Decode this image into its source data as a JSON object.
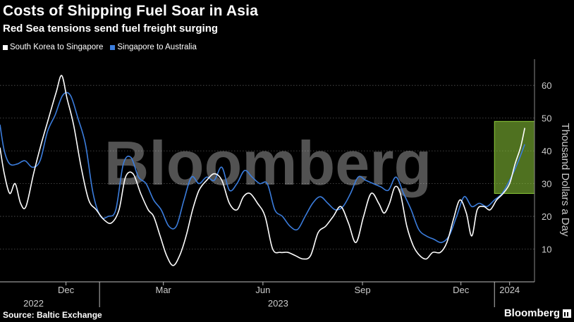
{
  "title": "Costs of Shipping Fuel Soar in Asia",
  "subtitle": "Red Sea tensions send fuel freight surging",
  "source": "Source: Baltic Exchange",
  "brand": "Bloomberg",
  "watermark": "Bloomberg",
  "chart_data": {
    "type": "line",
    "ylabel": "Thousand Dollars a Day",
    "ylim": [
      0,
      68
    ],
    "yticks": [
      10,
      20,
      30,
      40,
      50,
      60
    ],
    "xlim": [
      "2022-10-01",
      "2024-02-07"
    ],
    "x_tick_labels": [
      {
        "label": "Dec",
        "date": "2022-12-01"
      },
      {
        "label": "Mar",
        "date": "2023-03-01"
      },
      {
        "label": "Jun",
        "date": "2023-06-01"
      },
      {
        "label": "Sep",
        "date": "2023-09-01"
      },
      {
        "label": "Dec",
        "date": "2023-12-01"
      },
      {
        "label": "2024",
        "date": "2024-01-15"
      }
    ],
    "year_labels": [
      {
        "label": "2022",
        "date": "2022-11-01"
      },
      {
        "label": "2023",
        "date": "2023-06-15"
      }
    ],
    "year_dividers": [
      "2023-01-01",
      "2024-01-01"
    ],
    "highlight": {
      "from": "2024-01-01",
      "to": "2024-02-07",
      "ylow": 27,
      "yhigh": 49,
      "color": "#8fce3a"
    },
    "grid": "horizontal",
    "legend_position": "top-left",
    "series": [
      {
        "name": "South Korea to Singapore",
        "color": "#ffffff",
        "points": [
          [
            "2022-10-01",
            41
          ],
          [
            "2022-10-05",
            33
          ],
          [
            "2022-10-10",
            27
          ],
          [
            "2022-10-15",
            30
          ],
          [
            "2022-10-20",
            24
          ],
          [
            "2022-10-25",
            23
          ],
          [
            "2022-11-01",
            33
          ],
          [
            "2022-11-08",
            42
          ],
          [
            "2022-11-15",
            50
          ],
          [
            "2022-11-22",
            58
          ],
          [
            "2022-11-27",
            63
          ],
          [
            "2022-12-02",
            56
          ],
          [
            "2022-12-08",
            48
          ],
          [
            "2022-12-15",
            35
          ],
          [
            "2022-12-22",
            25
          ],
          [
            "2022-12-29",
            22
          ],
          [
            "2023-01-05",
            19
          ],
          [
            "2023-01-12",
            18
          ],
          [
            "2023-01-19",
            22
          ],
          [
            "2023-01-25",
            32
          ],
          [
            "2023-02-01",
            33
          ],
          [
            "2023-02-08",
            27
          ],
          [
            "2023-02-15",
            22
          ],
          [
            "2023-02-20",
            20
          ],
          [
            "2023-02-26",
            14
          ],
          [
            "2023-03-04",
            8
          ],
          [
            "2023-03-10",
            5
          ],
          [
            "2023-03-16",
            8
          ],
          [
            "2023-03-22",
            14
          ],
          [
            "2023-03-28",
            22
          ],
          [
            "2023-04-03",
            28
          ],
          [
            "2023-04-10",
            31
          ],
          [
            "2023-04-17",
            33
          ],
          [
            "2023-04-24",
            31
          ],
          [
            "2023-05-01",
            24
          ],
          [
            "2023-05-08",
            22
          ],
          [
            "2023-05-14",
            26
          ],
          [
            "2023-05-20",
            27
          ],
          [
            "2023-05-27",
            24
          ],
          [
            "2023-06-03",
            20
          ],
          [
            "2023-06-10",
            10
          ],
          [
            "2023-06-17",
            9
          ],
          [
            "2023-06-24",
            9
          ],
          [
            "2023-07-01",
            8
          ],
          [
            "2023-07-08",
            7
          ],
          [
            "2023-07-15",
            8
          ],
          [
            "2023-07-22",
            15
          ],
          [
            "2023-07-29",
            17
          ],
          [
            "2023-08-05",
            20
          ],
          [
            "2023-08-12",
            23
          ],
          [
            "2023-08-19",
            18
          ],
          [
            "2023-08-26",
            12
          ],
          [
            "2023-09-02",
            20
          ],
          [
            "2023-09-09",
            27
          ],
          [
            "2023-09-16",
            24
          ],
          [
            "2023-09-21",
            21
          ],
          [
            "2023-09-26",
            24
          ],
          [
            "2023-10-01",
            29
          ],
          [
            "2023-10-06",
            27
          ],
          [
            "2023-10-12",
            17
          ],
          [
            "2023-10-18",
            11
          ],
          [
            "2023-10-24",
            8
          ],
          [
            "2023-10-30",
            7
          ],
          [
            "2023-11-05",
            9
          ],
          [
            "2023-11-12",
            9
          ],
          [
            "2023-11-18",
            12
          ],
          [
            "2023-11-24",
            19
          ],
          [
            "2023-11-30",
            25
          ],
          [
            "2023-12-06",
            21
          ],
          [
            "2023-12-11",
            14
          ],
          [
            "2023-12-16",
            22
          ],
          [
            "2023-12-22",
            23
          ],
          [
            "2023-12-28",
            22
          ],
          [
            "2024-01-03",
            25
          ],
          [
            "2024-01-09",
            27
          ],
          [
            "2024-01-15",
            30
          ],
          [
            "2024-01-20",
            36
          ],
          [
            "2024-01-25",
            41
          ],
          [
            "2024-01-29",
            47
          ]
        ]
      },
      {
        "name": "Singapore to Australia",
        "color": "#3b7ddd",
        "points": [
          [
            "2022-10-01",
            48
          ],
          [
            "2022-10-05",
            40
          ],
          [
            "2022-10-10",
            36
          ],
          [
            "2022-10-17",
            36
          ],
          [
            "2022-10-24",
            37
          ],
          [
            "2022-10-31",
            35
          ],
          [
            "2022-11-07",
            37
          ],
          [
            "2022-11-14",
            46
          ],
          [
            "2022-11-21",
            51
          ],
          [
            "2022-11-28",
            57
          ],
          [
            "2022-12-05",
            57
          ],
          [
            "2022-12-12",
            50
          ],
          [
            "2022-12-19",
            42
          ],
          [
            "2022-12-26",
            27
          ],
          [
            "2023-01-02",
            20
          ],
          [
            "2023-01-09",
            20
          ],
          [
            "2023-01-16",
            22
          ],
          [
            "2023-01-23",
            36
          ],
          [
            "2023-01-30",
            38
          ],
          [
            "2023-02-06",
            32
          ],
          [
            "2023-02-13",
            30
          ],
          [
            "2023-02-20",
            25
          ],
          [
            "2023-02-27",
            22
          ],
          [
            "2023-03-06",
            17
          ],
          [
            "2023-03-13",
            17
          ],
          [
            "2023-03-20",
            25
          ],
          [
            "2023-03-27",
            32
          ],
          [
            "2023-04-03",
            30
          ],
          [
            "2023-04-10",
            32
          ],
          [
            "2023-04-17",
            31
          ],
          [
            "2023-04-24",
            35
          ],
          [
            "2023-05-01",
            28
          ],
          [
            "2023-05-08",
            30
          ],
          [
            "2023-05-15",
            34
          ],
          [
            "2023-05-22",
            32
          ],
          [
            "2023-05-29",
            30
          ],
          [
            "2023-06-05",
            30
          ],
          [
            "2023-06-12",
            22
          ],
          [
            "2023-06-19",
            20
          ],
          [
            "2023-06-26",
            17
          ],
          [
            "2023-07-03",
            16
          ],
          [
            "2023-07-10",
            20
          ],
          [
            "2023-07-17",
            24
          ],
          [
            "2023-07-24",
            26
          ],
          [
            "2023-07-31",
            24
          ],
          [
            "2023-08-07",
            22
          ],
          [
            "2023-08-14",
            23
          ],
          [
            "2023-08-21",
            27
          ],
          [
            "2023-08-28",
            32
          ],
          [
            "2023-09-04",
            31
          ],
          [
            "2023-09-11",
            30
          ],
          [
            "2023-09-18",
            29
          ],
          [
            "2023-09-25",
            28
          ],
          [
            "2023-10-02",
            32
          ],
          [
            "2023-10-09",
            27
          ],
          [
            "2023-10-16",
            22
          ],
          [
            "2023-10-23",
            16
          ],
          [
            "2023-10-30",
            14
          ],
          [
            "2023-11-06",
            13
          ],
          [
            "2023-11-13",
            12
          ],
          [
            "2023-11-20",
            14
          ],
          [
            "2023-11-27",
            20
          ],
          [
            "2023-12-04",
            26
          ],
          [
            "2023-12-11",
            23
          ],
          [
            "2023-12-18",
            24
          ],
          [
            "2023-12-25",
            23
          ],
          [
            "2024-01-01",
            25
          ],
          [
            "2024-01-08",
            27
          ],
          [
            "2024-01-15",
            31
          ],
          [
            "2024-01-22",
            36
          ],
          [
            "2024-01-29",
            42
          ]
        ]
      }
    ]
  }
}
